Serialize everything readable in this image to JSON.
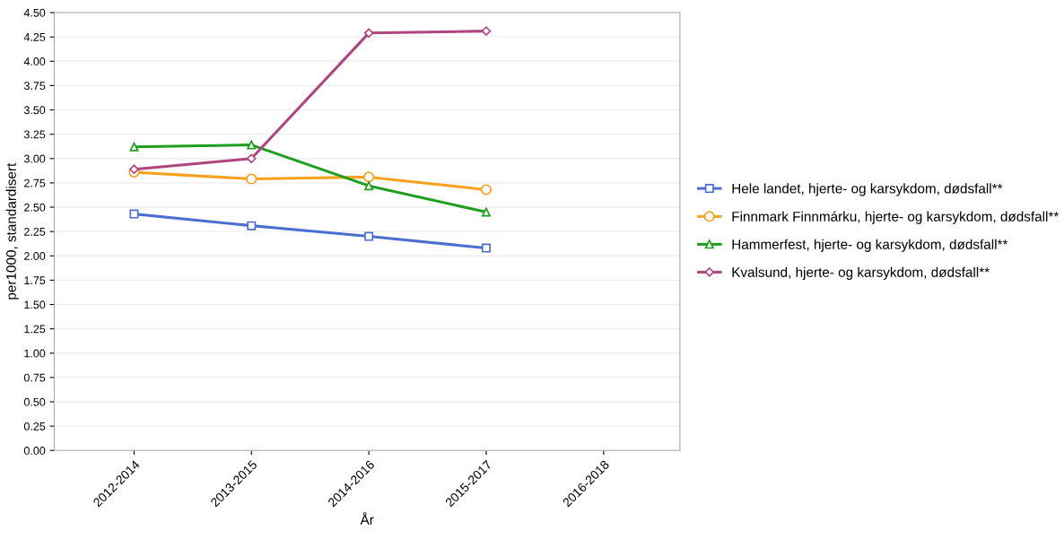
{
  "chart_data": {
    "type": "line",
    "xlabel": "År",
    "ylabel": "per1000, standardisert",
    "categories": [
      "2012-2014",
      "2013-2015",
      "2014-2016",
      "2015-2017",
      "2016-2018"
    ],
    "series": [
      {
        "name": "Hele landet, hjerte- og karsykdom, dødsfall**",
        "color": "#4a6fd0",
        "marker": "square",
        "values": [
          2.43,
          2.31,
          2.2,
          2.08,
          null
        ]
      },
      {
        "name": "Finnmark Finnmárku, hjerte- og karsykdom, dødsfall**",
        "color": "#f5a21e",
        "marker": "circle",
        "values": [
          2.86,
          2.79,
          2.81,
          2.68,
          null
        ]
      },
      {
        "name": "Hammerfest, hjerte- og karsykdom, dødsfall**",
        "color": "#1f9e1f",
        "marker": "triangle",
        "values": [
          3.12,
          3.14,
          2.72,
          2.45,
          null
        ]
      },
      {
        "name": "Kvalsund, hjerte- og karsykdom, dødsfall**",
        "color": "#b0467f",
        "marker": "diamond",
        "values": [
          2.89,
          3.0,
          4.29,
          4.31,
          null
        ]
      }
    ],
    "ylim": [
      0,
      4.5
    ],
    "yticks": [
      {
        "value": 0,
        "label": "0.00"
      },
      {
        "value": 0.25,
        "label": "0.25"
      },
      {
        "value": 0.5,
        "label": "0.50"
      },
      {
        "value": 0.75,
        "label": "0.75"
      },
      {
        "value": 1,
        "label": "1.00"
      },
      {
        "value": 1.25,
        "label": "1.25"
      },
      {
        "value": 1.5,
        "label": "1.50"
      },
      {
        "value": 1.75,
        "label": "1.75"
      },
      {
        "value": 2,
        "label": "2.00"
      },
      {
        "value": 2.25,
        "label": "2.25"
      },
      {
        "value": 2.5,
        "label": "2.50"
      },
      {
        "value": 2.75,
        "label": "2.75"
      },
      {
        "value": 3,
        "label": "3.00"
      },
      {
        "value": 3.25,
        "label": "3.25"
      },
      {
        "value": 3.5,
        "label": "3.50"
      },
      {
        "value": 3.75,
        "label": "3.75"
      },
      {
        "value": 4,
        "label": "4.00"
      },
      {
        "value": 4.25,
        "label": "4.25"
      },
      {
        "value": 4.5,
        "label": "4.50"
      }
    ],
    "grid": "y",
    "legend": "right"
  }
}
